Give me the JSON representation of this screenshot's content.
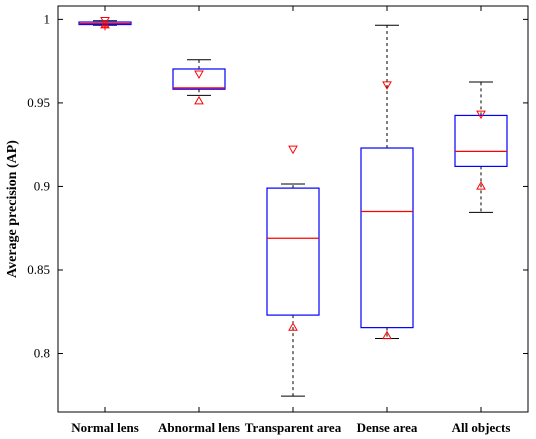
{
  "chart_data": {
    "type": "boxplot",
    "title": "",
    "xlabel": "",
    "ylabel": "Average precision (AP)",
    "ylim": [
      0.765,
      1.008
    ],
    "yticks": [
      0.8,
      0.85,
      0.9,
      0.95,
      1
    ],
    "ytick_labels": [
      "0.8",
      "0.85",
      "0.9",
      "0.95",
      "1"
    ],
    "grid": false,
    "categories": [
      "Normal lens",
      "Abnormal lens",
      "Transparent area",
      "Dense area",
      "All objects"
    ],
    "boxes": [
      {
        "category": "Normal lens",
        "whisker_low": 0.9965,
        "q1": 0.9969,
        "median": 0.9975,
        "q3": 0.9984,
        "whisker_high": 0.9992,
        "markers": [
          {
            "symbol": "+",
            "value": 0.9955
          },
          {
            "symbol": "down-triangle",
            "value": 0.999
          },
          {
            "symbol": "up-triangle",
            "value": 0.997
          }
        ]
      },
      {
        "category": "Abnormal lens",
        "whisker_low": 0.9545,
        "q1": 0.9582,
        "median": 0.959,
        "q3": 0.9703,
        "whisker_high": 0.9758,
        "markers": [
          {
            "symbol": "down-triangle",
            "value": 0.967
          },
          {
            "symbol": "up-triangle",
            "value": 0.9515
          }
        ]
      },
      {
        "category": "Transparent area",
        "whisker_low": 0.7745,
        "q1": 0.823,
        "median": 0.869,
        "q3": 0.899,
        "whisker_high": 0.9015,
        "markers": [
          {
            "symbol": "down-triangle",
            "value": 0.922
          },
          {
            "symbol": "up-triangle",
            "value": 0.816
          }
        ]
      },
      {
        "category": "Dense area",
        "whisker_low": 0.809,
        "q1": 0.8155,
        "median": 0.885,
        "q3": 0.923,
        "whisker_high": 0.9965,
        "markers": [
          {
            "symbol": "down-triangle",
            "value": 0.9605
          },
          {
            "symbol": "up-triangle",
            "value": 0.811
          }
        ]
      },
      {
        "category": "All objects",
        "whisker_low": 0.8845,
        "q1": 0.912,
        "median": 0.921,
        "q3": 0.9425,
        "whisker_high": 0.9625,
        "markers": [
          {
            "symbol": "down-triangle",
            "value": 0.943
          },
          {
            "symbol": "up-triangle",
            "value": 0.9005
          }
        ]
      }
    ],
    "colors": {
      "box": "#0000ff",
      "median": "#ff0000",
      "whisker": "#000000",
      "marker": "#ff0000",
      "axis": "#000000"
    }
  }
}
